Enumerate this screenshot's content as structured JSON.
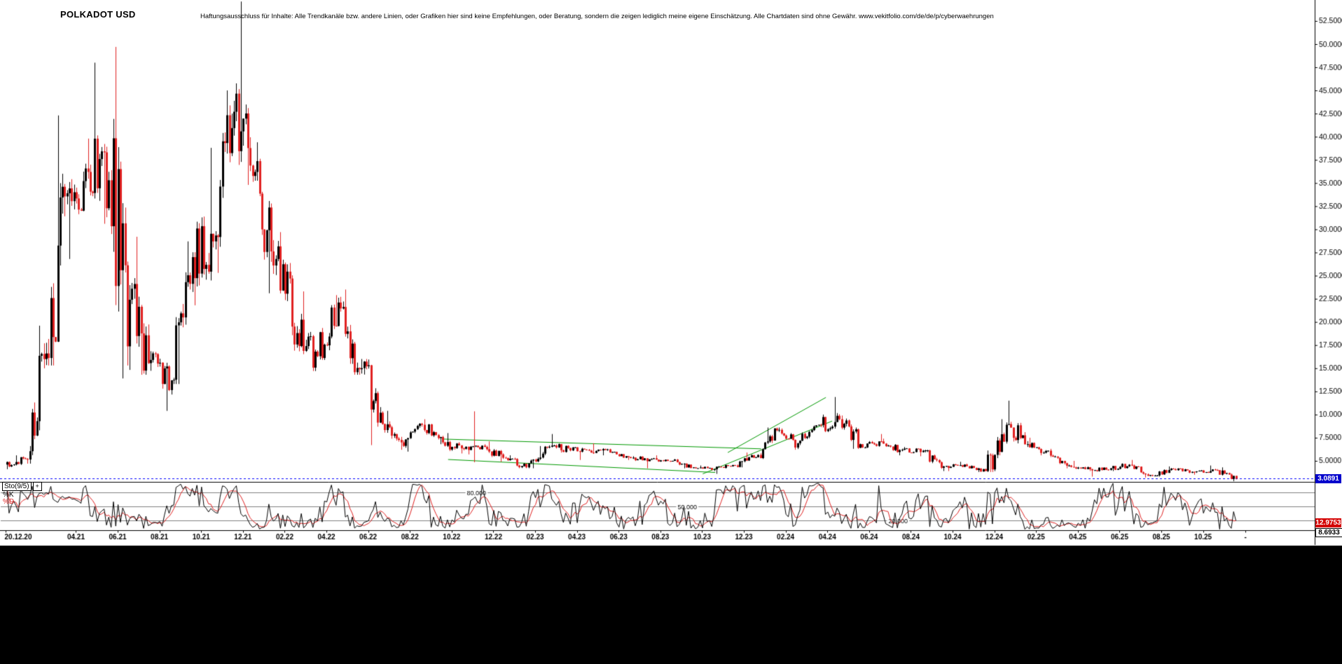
{
  "header": {
    "title": "POLKADOT USD",
    "disclaimer": "Haftungsausschluss für Inhalte: Alle Trendkanäle bzw. andere Linien, oder Grafiken hier sind keine Empfehlungen, oder Beratung, sondern die zeigen lediglich meine eigene Einschätzung. Alle Chartdaten sind ohne Gewähr.  www.vekitfolio.com/de/de/p/cyberwaehrungen"
  },
  "colors": {
    "background": "#ffffff",
    "candle_up": "#000000",
    "candle_down": "#e02020",
    "trend_line": "#009900",
    "current_price_line": "#0000ff",
    "price_badge_bg": "#0000cc",
    "sto_k": "#000000",
    "sto_d": "#e02020",
    "level_line": "#808080",
    "axis": "#000000",
    "bottom_bar": "#000000"
  },
  "chart_data": {
    "type": "candlestick",
    "title": "POLKADOT USD",
    "indicator": "stochastic",
    "current_price": 3.0891,
    "current_price_label": "3.0891",
    "series_columns": [
      "month",
      "open",
      "high",
      "low",
      "close"
    ],
    "monthly_ohlc": [
      [
        "2020-12",
        4.6,
        5.6,
        4.1,
        5.2
      ],
      [
        "2021-01",
        5.2,
        19.6,
        4.7,
        16.6
      ],
      [
        "2021-02",
        16.6,
        42.3,
        15.3,
        33.9
      ],
      [
        "2021-03",
        33.9,
        39.8,
        26.8,
        36.2
      ],
      [
        "2021-04",
        36.2,
        48.0,
        30.6,
        35.3
      ],
      [
        "2021-05",
        35.3,
        49.7,
        13.9,
        22.4
      ],
      [
        "2021-06",
        22.4,
        29.2,
        14.3,
        15.9
      ],
      [
        "2021-07",
        15.9,
        16.8,
        10.4,
        13.7
      ],
      [
        "2021-08",
        13.7,
        28.7,
        13.3,
        27.0
      ],
      [
        "2021-09",
        27.0,
        38.8,
        21.8,
        28.7
      ],
      [
        "2021-10",
        28.7,
        45.0,
        25.3,
        42.7
      ],
      [
        "2021-11",
        42.7,
        54.6,
        34.8,
        36.2
      ],
      [
        "2021-12",
        36.2,
        39.4,
        23.1,
        26.8
      ],
      [
        "2022-01",
        26.8,
        29.7,
        16.9,
        18.8
      ],
      [
        "2022-02",
        18.8,
        23.3,
        14.7,
        16.3
      ],
      [
        "2022-03",
        16.3,
        22.9,
        15.9,
        22.1
      ],
      [
        "2022-04",
        22.1,
        23.5,
        14.3,
        14.9
      ],
      [
        "2022-05",
        14.9,
        16.0,
        6.7,
        10.2
      ],
      [
        "2022-06",
        10.2,
        10.4,
        6.2,
        7.0
      ],
      [
        "2022-07",
        7.0,
        9.1,
        6.0,
        8.9
      ],
      [
        "2022-08",
        8.9,
        9.5,
        6.8,
        7.0
      ],
      [
        "2022-09",
        7.0,
        8.0,
        5.8,
        6.3
      ],
      [
        "2022-10",
        6.3,
        6.8,
        5.7,
        6.5
      ],
      [
        "2022-11",
        6.5,
        7.1,
        4.9,
        5.3
      ],
      [
        "2022-12",
        5.3,
        5.6,
        4.2,
        4.3
      ],
      [
        "2023-01",
        4.3,
        6.6,
        4.2,
        6.5
      ],
      [
        "2023-02",
        6.5,
        7.9,
        5.9,
        6.4
      ],
      [
        "2023-03",
        6.4,
        6.5,
        5.1,
        6.1
      ],
      [
        "2023-04",
        6.1,
        6.9,
        5.6,
        5.9
      ],
      [
        "2023-05",
        5.9,
        6.0,
        5.1,
        5.3
      ],
      [
        "2023-06",
        5.3,
        5.5,
        4.2,
        5.2
      ],
      [
        "2023-07",
        5.2,
        5.6,
        4.9,
        5.0
      ],
      [
        "2023-08",
        5.0,
        5.2,
        4.2,
        4.3
      ],
      [
        "2023-09",
        4.3,
        4.5,
        3.9,
        4.1
      ],
      [
        "2023-10",
        4.1,
        4.6,
        3.6,
        4.5
      ],
      [
        "2023-11",
        4.5,
        5.9,
        4.3,
        5.4
      ],
      [
        "2023-12",
        5.4,
        8.6,
        5.2,
        8.3
      ],
      [
        "2024-01",
        8.3,
        8.6,
        6.2,
        6.9
      ],
      [
        "2024-02",
        6.9,
        8.9,
        6.7,
        8.9
      ],
      [
        "2024-03",
        8.9,
        11.9,
        8.1,
        9.5
      ],
      [
        "2024-04",
        9.5,
        9.9,
        6.3,
        6.8
      ],
      [
        "2024-05",
        6.8,
        7.9,
        6.4,
        7.1
      ],
      [
        "2024-06",
        7.1,
        7.4,
        5.6,
        6.2
      ],
      [
        "2024-07",
        6.2,
        6.5,
        5.5,
        6.1
      ],
      [
        "2024-08",
        6.1,
        6.2,
        3.9,
        4.4
      ],
      [
        "2024-09",
        4.4,
        4.9,
        3.9,
        4.6
      ],
      [
        "2024-10",
        4.6,
        4.7,
        3.8,
        3.9
      ],
      [
        "2024-11",
        3.9,
        9.5,
        3.8,
        8.9
      ],
      [
        "2024-12",
        8.9,
        11.5,
        6.5,
        6.8
      ],
      [
        "2025-01",
        6.8,
        7.5,
        5.6,
        6.1
      ],
      [
        "2025-02",
        6.1,
        6.3,
        4.2,
        4.5
      ],
      [
        "2025-03",
        4.5,
        5.0,
        3.9,
        4.1
      ],
      [
        "2025-04",
        4.1,
        4.3,
        3.3,
        4.2
      ],
      [
        "2025-05",
        4.2,
        5.1,
        3.9,
        4.5
      ],
      [
        "2025-06",
        4.5,
        4.6,
        3.2,
        3.4
      ],
      [
        "2025-07",
        3.4,
        4.4,
        3.3,
        4.1
      ],
      [
        "2025-08",
        4.1,
        4.2,
        3.5,
        3.8
      ],
      [
        "2025-09",
        3.8,
        4.5,
        3.7,
        4.0
      ],
      [
        "2025-10",
        4.0,
        4.3,
        2.8,
        3.09
      ]
    ],
    "y_axis_ticks": [
      "52.5000",
      "50.0000",
      "47.5000",
      "45.0000",
      "42.5000",
      "40.0000",
      "37.5000",
      "35.0000",
      "32.5000",
      "30.0000",
      "27.5000",
      "25.0000",
      "22.5000",
      "20.0000",
      "17.5000",
      "15.0000",
      "12.5000",
      "10.0000",
      "7.5000",
      "5.0000"
    ],
    "x_axis_ticks": [
      {
        "label": "20.12.20",
        "m": 0
      },
      {
        "label": "04.21",
        "m": 3.37
      },
      {
        "label": "06.21",
        "m": 5.37
      },
      {
        "label": "08.21",
        "m": 7.37
      },
      {
        "label": "10.21",
        "m": 9.37
      },
      {
        "label": "12.21",
        "m": 11.37
      },
      {
        "label": "02.22",
        "m": 13.37
      },
      {
        "label": "04.22",
        "m": 15.37
      },
      {
        "label": "06.22",
        "m": 17.37
      },
      {
        "label": "08.22",
        "m": 19.37
      },
      {
        "label": "10.22",
        "m": 21.37
      },
      {
        "label": "12.22",
        "m": 23.37
      },
      {
        "label": "02.23",
        "m": 25.37
      },
      {
        "label": "04.23",
        "m": 27.37
      },
      {
        "label": "06.23",
        "m": 29.37
      },
      {
        "label": "08.23",
        "m": 31.37
      },
      {
        "label": "10.23",
        "m": 33.37
      },
      {
        "label": "12.23",
        "m": 35.37
      },
      {
        "label": "02.24",
        "m": 37.37
      },
      {
        "label": "04.24",
        "m": 39.37
      },
      {
        "label": "06.24",
        "m": 41.37
      },
      {
        "label": "08.24",
        "m": 43.37
      },
      {
        "label": "10.24",
        "m": 45.37
      },
      {
        "label": "12.24",
        "m": 47.37
      },
      {
        "label": "02.25",
        "m": 49.37
      },
      {
        "label": "04.25",
        "m": 51.37
      },
      {
        "label": "06.25",
        "m": 53.37
      },
      {
        "label": "08.25",
        "m": 55.37
      },
      {
        "label": "10.25",
        "m": 57.37
      },
      {
        "label": "-",
        "m": 59.4
      }
    ],
    "trend_lines": [
      {
        "from_m": 21.0,
        "from_price": 7.35,
        "to_m": 36.2,
        "to_price": 6.3
      },
      {
        "from_m": 21.2,
        "from_price": 5.15,
        "to_m": 34.0,
        "to_price": 3.75
      },
      {
        "from_m": 33.4,
        "from_price": 3.6,
        "to_m": 39.6,
        "to_price": 9.3
      },
      {
        "from_m": 34.6,
        "from_price": 5.9,
        "to_m": 39.3,
        "to_price": 11.85
      }
    ],
    "anomaly_spike": {
      "m": 22.45,
      "high": 10.35,
      "low": 4.85
    },
    "stochastic": {
      "label": "Sto(9/5)",
      "add_button": "+",
      "k_label": "%K",
      "d_label": "%D",
      "k_value": "8.6933",
      "d_value": "12.9753",
      "levels": [
        {
          "label": "80.000",
          "value": 80,
          "label_m": 22.1
        },
        {
          "label": "50.000",
          "value": 50,
          "label_m": 32.2
        },
        {
          "label": "20.000",
          "value": 20,
          "label_m": 42.3
        }
      ]
    }
  }
}
